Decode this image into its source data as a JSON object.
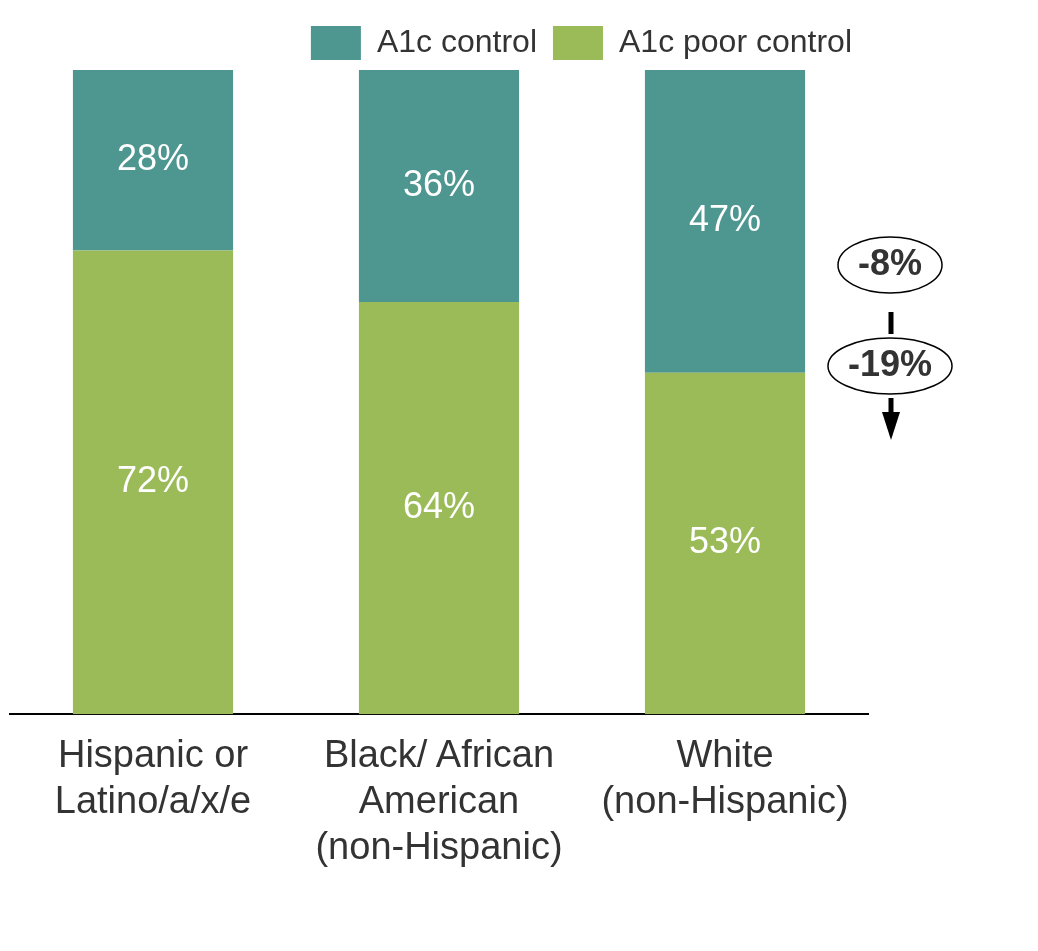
{
  "chart_data": {
    "type": "bar",
    "stacked": true,
    "categories": [
      "Hispanic or\nLatino/a/x/e",
      "Black/ African\nAmerican\n(non-Hispanic)",
      "White\n(non-Hispanic)"
    ],
    "series": [
      {
        "name": "A1c poor control",
        "color": "#9bbb59",
        "values": [
          72,
          64,
          53
        ],
        "value_labels": [
          "72%",
          "64%",
          "53%"
        ]
      },
      {
        "name": "A1c control",
        "color": "#4e9690",
        "values": [
          28,
          36,
          47
        ],
        "value_labels": [
          "28%",
          "36%",
          "47%"
        ]
      }
    ],
    "tick_labels": "x",
    "grid": false,
    "legend": "top right",
    "annotations": [
      "-8%",
      "-19%"
    ]
  }
}
